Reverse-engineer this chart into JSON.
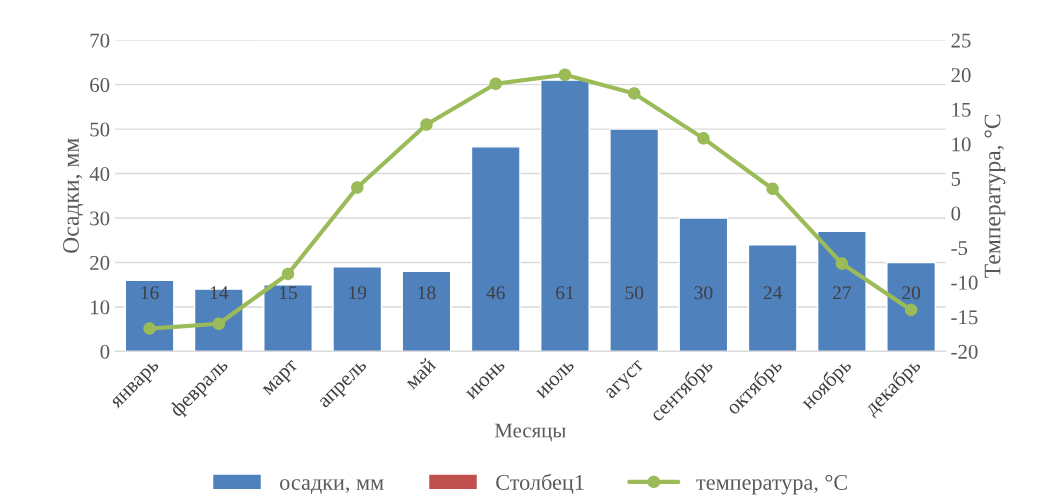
{
  "chart_data": {
    "type": "bar",
    "xlabel": "Месяцы",
    "ylabel": "Осадки, мм",
    "y2label": "Температура, °C",
    "categories": [
      "январь",
      "февраль",
      "март",
      "апрель",
      "май",
      "июнь",
      "июль",
      "агуст",
      "сентябрь",
      "октябрь",
      "ноябрь",
      "декабрь"
    ],
    "series": [
      {
        "name": "осадки, мм",
        "color": "#4f81bd",
        "values": [
          16,
          14,
          15,
          19,
          18,
          46,
          61,
          50,
          30,
          24,
          27,
          20
        ],
        "value_labels": [
          "16",
          "14",
          "15",
          "19",
          "18",
          "46",
          "61",
          "50",
          "30",
          "24",
          "27",
          "20"
        ]
      },
      {
        "name": "Столбец1",
        "color": "#c0504d",
        "values": [
          null,
          null,
          null,
          null,
          null,
          null,
          null,
          null,
          null,
          null,
          null,
          null
        ]
      },
      {
        "name": "температура, °C",
        "type": "line",
        "axis": "y2",
        "color": "#9bbb59",
        "marker": "circle",
        "values": [
          -16.7,
          -16,
          -8.8,
          3.7,
          12.8,
          18.7,
          20,
          17.3,
          10.8,
          3.5,
          -7.3,
          -14
        ]
      }
    ],
    "ylim": [
      0,
      70
    ],
    "yticks": [
      0,
      10,
      20,
      30,
      40,
      50,
      60,
      70
    ],
    "y2lim": [
      -20,
      25
    ],
    "y2ticks": [
      -20,
      -15,
      -10,
      -5,
      0,
      5,
      10,
      15,
      20,
      25
    ],
    "grid": "y",
    "legend": "bottom"
  }
}
